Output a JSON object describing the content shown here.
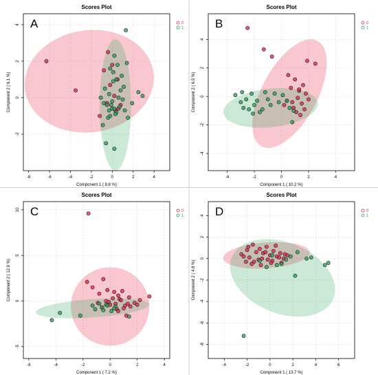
{
  "colors": {
    "group0": "#e8284a",
    "group1": "#2aa35a"
  },
  "chart_data": [
    {
      "type": "scatter",
      "panel_letter": "A",
      "title": "Scores Plot",
      "xlabel": "Component 1 ( 8.8 %)",
      "ylabel": "Component 2 ( 6.1 %)",
      "xlim": [
        -8.5,
        5.5
      ],
      "ylim": [
        -4.0,
        4.6
      ],
      "xticks": [
        -8,
        -6,
        -4,
        -2,
        0,
        2,
        4
      ],
      "yticks": [
        -2,
        0,
        2,
        4
      ],
      "legend": [
        "0",
        "1"
      ],
      "legend_position": "top-right",
      "grid": true,
      "ellipses": [
        {
          "group": "0",
          "cx": -2.2,
          "cy": 0.9,
          "rx": 6.2,
          "ry": 2.8,
          "angle": -8
        },
        {
          "group": "1",
          "cx": 0.3,
          "cy": -0.4,
          "rx": 1.5,
          "ry": 3.6,
          "angle": 0
        }
      ],
      "series": [
        {
          "name": "0",
          "x": [
            -6.3,
            -3.5,
            -0.4,
            0.0,
            0.5,
            -0.8,
            -1.2,
            0.8,
            0.3,
            -0.2,
            0.6,
            -0.5,
            0.2
          ],
          "y": [
            2.0,
            0.4,
            2.5,
            1.8,
            1.0,
            1.5,
            -1.0,
            -0.4,
            -0.7,
            0.7,
            -0.6,
            -0.3,
            0.1
          ]
        },
        {
          "name": "1",
          "x": [
            1.3,
            0.2,
            0.5,
            -0.2,
            0.1,
            1.4,
            2.5,
            2.9,
            -0.7,
            -0.3,
            0.0,
            1.0,
            0.7,
            -0.3,
            0.4,
            1.5,
            -0.9,
            -0.6,
            0.2,
            1.1,
            0.8,
            -0.1,
            0.3,
            0.0,
            -0.4,
            0.9,
            1.9,
            0.6,
            -1.1,
            -0.8,
            0.1,
            0.4,
            1.2,
            -0.2,
            -0.5,
            0.2
          ],
          "y": [
            3.7,
            2.3,
            1.8,
            1.6,
            1.4,
            1.9,
            0.3,
            0.1,
            0.5,
            0.2,
            -0.2,
            -0.1,
            -0.5,
            -0.7,
            -0.8,
            -1.1,
            -1.5,
            -2.5,
            -2.8,
            0.6,
            0.4,
            -0.4,
            -0.9,
            -0.6,
            -1.1,
            1.2,
            -0.3,
            0.0,
            0.0,
            -0.3,
            0.9,
            1.0,
            -0.7,
            -1.0,
            -0.4,
            -0.6
          ]
        }
      ]
    },
    {
      "type": "scatter",
      "panel_letter": "B",
      "title": "Scores Plot",
      "xlabel": "Component 1 ( 10.2 %)",
      "ylabel": "Component 2 ( 6.5 %)",
      "xlim": [
        -5.4,
        5.4
      ],
      "ylim": [
        -5.2,
        5.8
      ],
      "xticks": [
        -4,
        -2,
        0,
        2,
        4
      ],
      "yticks": [
        -4,
        -2,
        0,
        2,
        4
      ],
      "legend": [
        "0",
        "1"
      ],
      "legend_position": "top-right",
      "grid": true,
      "ellipses": [
        {
          "group": "0",
          "cx": 0.6,
          "cy": 0.2,
          "rx": 4.4,
          "ry": 1.95,
          "angle": -62
        },
        {
          "group": "1",
          "cx": -0.8,
          "cy": -0.8,
          "rx": 3.5,
          "ry": 1.35,
          "angle": -6
        }
      ],
      "series": [
        {
          "name": "0",
          "x": [
            -2.5,
            -1.3,
            -0.7,
            1.9,
            2.5,
            0.5,
            1.0,
            1.6,
            1.3,
            0.7,
            1.8,
            1.2,
            0.4,
            1.5,
            0.9,
            1.1,
            0.2,
            1.7,
            1.4,
            2.0,
            1.3,
            0.8
          ],
          "y": [
            4.8,
            3.3,
            2.8,
            2.5,
            2.3,
            1.5,
            1.2,
            0.8,
            0.4,
            0.6,
            0.2,
            -0.1,
            -0.3,
            -0.5,
            -0.8,
            -1.1,
            -0.6,
            -0.9,
            -1.3,
            -0.2,
            0.5,
            -0.4
          ]
        },
        {
          "name": "1",
          "x": [
            -3.4,
            -3.0,
            -2.8,
            -2.6,
            -2.4,
            -2.2,
            -2.0,
            -1.8,
            -1.6,
            -1.2,
            -1.0,
            -0.8,
            -0.5,
            -0.2,
            0.1,
            0.4,
            0.6,
            0.9,
            0.8,
            -2.1,
            -1.4,
            -2.9
          ],
          "y": [
            0.1,
            -0.4,
            -0.8,
            -0.2,
            -0.9,
            0.2,
            -0.6,
            -0.3,
            -1.1,
            0.3,
            -0.2,
            -0.6,
            0.2,
            -0.4,
            0.1,
            -0.3,
            -0.8,
            -1.0,
            -1.8,
            -1.2,
            -0.9,
            0.3
          ]
        }
      ]
    },
    {
      "type": "scatter",
      "panel_letter": "C",
      "title": "Scores Plot",
      "xlabel": "Component 1 ( 7.2 %)",
      "ylabel": "Component 2 ( 12.9 %)",
      "xlim": [
        -6.4,
        4.4
      ],
      "ylim": [
        -6.3,
        10.9
      ],
      "xticks": [
        -6,
        -4,
        -2,
        0,
        2,
        4
      ],
      "yticks": [
        -5,
        0,
        5,
        10
      ],
      "legend": [
        "0",
        "1"
      ],
      "legend_position": "top-right",
      "grid": true,
      "ellipses": [
        {
          "group": "0",
          "cx": 0.0,
          "cy": -0.6,
          "rx": 2.9,
          "ry": 4.3,
          "angle": 0
        },
        {
          "group": "1",
          "cx": -1.3,
          "cy": -0.8,
          "rx": 4.2,
          "ry": 1.0,
          "angle": -4
        }
      ],
      "series": [
        {
          "name": "0",
          "x": [
            -1.6,
            -1.7,
            -0.5,
            -1.3,
            -0.8,
            -0.2,
            0.3,
            0.6,
            0.9,
            1.4,
            2.2,
            2.9,
            1.8,
            1.1,
            0.4,
            -0.1,
            0.7,
            1.5,
            0.0,
            -0.6,
            0.5,
            1.0,
            1.3,
            0.2,
            -0.3,
            0.8,
            2.0,
            0.6,
            1.2,
            -0.9
          ],
          "y": [
            9.6,
            2.1,
            2.4,
            1.5,
            0.8,
            1.2,
            1.0,
            0.6,
            1.1,
            0.4,
            0.1,
            0.5,
            -0.2,
            -0.5,
            -0.3,
            -0.1,
            0.2,
            -0.6,
            -0.4,
            -0.7,
            -0.9,
            -0.8,
            -0.3,
            0.3,
            0.0,
            0.1,
            -0.4,
            -1.1,
            -1.6,
            -0.2
          ]
        },
        {
          "name": "1",
          "x": [
            -4.3,
            -3.7,
            -2.2,
            -1.3,
            -0.6,
            -0.3,
            -0.5,
            0.1,
            0.4,
            1.4,
            -0.8,
            -0.2,
            0.3,
            -1.1
          ],
          "y": [
            -2.1,
            -1.3,
            -1.6,
            -0.5,
            -0.7,
            -0.4,
            -1.0,
            -1.1,
            -0.6,
            -1.7,
            -0.3,
            -0.5,
            -0.8,
            -0.9
          ]
        }
      ]
    },
    {
      "type": "scatter",
      "panel_letter": "D",
      "title": "Scores Plot",
      "xlabel": "Component 1 ( 13.7 %)",
      "ylabel": "Component 2 ( 4.8 %)",
      "xlim": [
        -5.4,
        7.4
      ],
      "ylim": [
        -9.3,
        5.3
      ],
      "xticks": [
        -4,
        -2,
        0,
        2,
        4,
        6
      ],
      "yticks": [
        -8,
        -6,
        -4,
        -2,
        0,
        2,
        4
      ],
      "legend": [
        "0",
        "1"
      ],
      "legend_position": "top-right",
      "grid": true,
      "ellipses": [
        {
          "group": "0",
          "cx": -0.3,
          "cy": 0.3,
          "rx": 3.8,
          "ry": 1.2,
          "angle": -4
        },
        {
          "group": "1",
          "cx": 1.1,
          "cy": -1.8,
          "rx": 4.8,
          "ry": 3.3,
          "angle": 22
        }
      ],
      "series": [
        {
          "name": "0",
          "x": [
            -2.3,
            -2.5,
            -2.0,
            -1.8,
            -1.5,
            -1.2,
            -0.9,
            -0.6,
            -0.3,
            0.0,
            0.3,
            0.6,
            0.9,
            1.2,
            1.5,
            -1.4,
            -1.0,
            -0.4,
            0.2,
            0.8,
            1.0,
            -0.7,
            -2.1,
            -1.6,
            0.5,
            1.3,
            -0.2,
            -1.9,
            -0.8,
            0.1
          ],
          "y": [
            0.2,
            0.4,
            0.8,
            0.1,
            1.3,
            0.6,
            0.9,
            0.5,
            1.1,
            0.3,
            0.7,
            0.2,
            0.5,
            0.0,
            0.3,
            -0.3,
            -0.1,
            0.6,
            -0.2,
            0.1,
            -0.4,
            0.0,
            -0.3,
            -0.5,
            1.2,
            0.4,
            -0.1,
            1.1,
            -0.6,
            -0.4
          ]
        },
        {
          "name": "1",
          "x": [
            -2.3,
            2.4,
            3.2,
            5.1,
            4.8,
            2.2,
            1.4,
            0.6,
            -0.3,
            -0.9,
            0.2,
            1.0,
            1.8,
            3.6
          ],
          "y": [
            -7.2,
            0.6,
            0.0,
            -0.4,
            -0.6,
            -1.6,
            -0.1,
            -0.6,
            -0.8,
            -0.2,
            0.3,
            -0.5,
            0.2,
            0.1
          ]
        }
      ]
    }
  ]
}
